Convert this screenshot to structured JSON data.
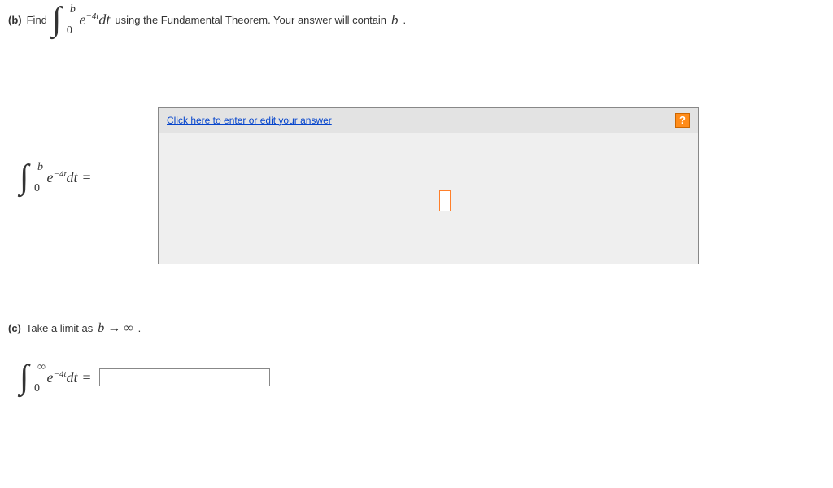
{
  "partB": {
    "label": "(b)",
    "verb": "Find",
    "integral_upper": "b",
    "integral_lower": "0",
    "integrand_base": "e",
    "integrand_exp": "−4t",
    "integrand_dt": "dt",
    "tail_text_1": "using the Fundamental Theorem. Your answer will contain",
    "tail_var": "b",
    "tail_text_2": "."
  },
  "answerArea": {
    "lhs_upper": "b",
    "lhs_lower": "0",
    "lhs_base": "e",
    "lhs_exp": "−4t",
    "lhs_dt": "dt",
    "equals": "=",
    "link_text": "Click here to enter or edit your answer",
    "help_glyph": "?"
  },
  "partC": {
    "label": "(c)",
    "text": "Take a limit as",
    "limit_var": "b",
    "limit_arrow": "→",
    "limit_inf": "∞",
    "period": "."
  },
  "integralC": {
    "upper": "∞",
    "lower": "0",
    "base": "e",
    "exp": "−4t",
    "dt": "dt",
    "equals": "=",
    "input_value": ""
  },
  "colors": {
    "link": "#0645cc",
    "help_bg": "#ff8c1a",
    "cursor_border": "#ff7f2a",
    "panel_bg": "#efefef",
    "header_bg": "#e3e3e3"
  }
}
